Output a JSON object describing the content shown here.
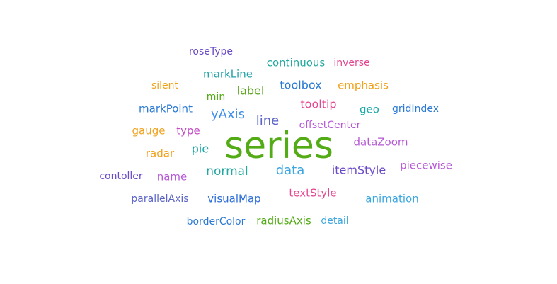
{
  "chart_data": {
    "type": "wordcloud",
    "words": [
      {
        "text": "series",
        "color": "#53ab16",
        "weight": 1.0
      },
      {
        "text": "line",
        "color": "#5b64c7",
        "weight": 0.46
      },
      {
        "text": "yAxis",
        "color": "#3d8ee8",
        "weight": 0.42
      },
      {
        "text": "data",
        "color": "#3ba6e0",
        "weight": 0.42
      },
      {
        "text": "normal",
        "color": "#22a8a0",
        "weight": 0.36
      },
      {
        "text": "itemStyle",
        "color": "#6a4ac7",
        "weight": 0.34
      },
      {
        "text": "tooltip",
        "color": "#e44591",
        "weight": 0.34
      },
      {
        "text": "label",
        "color": "#5aa41f",
        "weight": 0.32
      },
      {
        "text": "pie",
        "color": "#1aa8a8",
        "weight": 0.3
      },
      {
        "text": "toolbox",
        "color": "#2a79d4",
        "weight": 0.3
      },
      {
        "text": "markLine",
        "color": "#27a3a8",
        "weight": 0.29
      },
      {
        "text": "textStyle",
        "color": "#e44591",
        "weight": 0.29
      },
      {
        "text": "visualMap",
        "color": "#2d6ed8",
        "weight": 0.28
      },
      {
        "text": "dataZoom",
        "color": "#b659d6",
        "weight": 0.28
      },
      {
        "text": "markPoint",
        "color": "#2a79d4",
        "weight": 0.27
      },
      {
        "text": "continuous",
        "color": "#22a8a0",
        "weight": 0.27
      },
      {
        "text": "type",
        "color": "#c34dc4",
        "weight": 0.27
      },
      {
        "text": "geo",
        "color": "#1aa8a8",
        "weight": 0.27
      },
      {
        "text": "emphasis",
        "color": "#f0a11a",
        "weight": 0.26
      },
      {
        "text": "radar",
        "color": "#f0a11a",
        "weight": 0.25
      },
      {
        "text": "gauge",
        "color": "#f0a11a",
        "weight": 0.25
      },
      {
        "text": "name",
        "color": "#b659d6",
        "weight": 0.24
      },
      {
        "text": "piecewise",
        "color": "#b659d6",
        "weight": 0.24
      },
      {
        "text": "radiusAxis",
        "color": "#53ab16",
        "weight": 0.24
      },
      {
        "text": "animation",
        "color": "#3ba6e0",
        "weight": 0.24
      },
      {
        "text": "gridIndex",
        "color": "#2a79d4",
        "weight": 0.23
      },
      {
        "text": "silent",
        "color": "#f0a11a",
        "weight": 0.23
      },
      {
        "text": "parallelAxis",
        "color": "#5b64c7",
        "weight": 0.23
      },
      {
        "text": "borderColor",
        "color": "#2a79d4",
        "weight": 0.23
      },
      {
        "text": "inverse",
        "color": "#e44591",
        "weight": 0.23
      },
      {
        "text": "contoller",
        "color": "#6a4ac7",
        "weight": 0.22
      },
      {
        "text": "roseType",
        "color": "#6a4ac7",
        "weight": 0.22
      },
      {
        "text": "min",
        "color": "#53ab16",
        "weight": 0.22
      },
      {
        "text": "detail",
        "color": "#3ba6e0",
        "weight": 0.22
      },
      {
        "text": "offsetCenter",
        "color": "#b659d6",
        "weight": 0.21
      }
    ]
  }
}
